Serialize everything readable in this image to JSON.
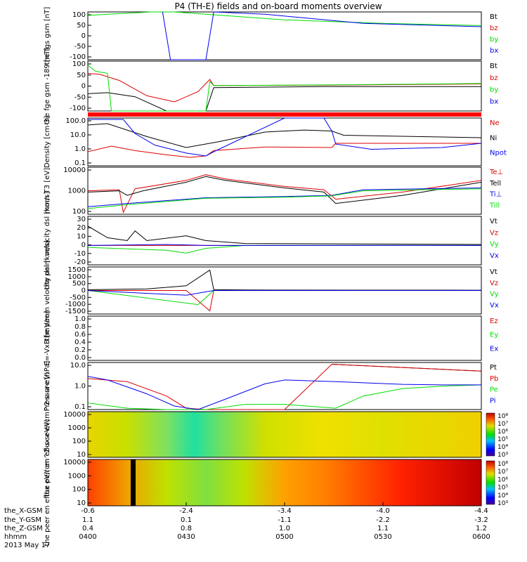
{
  "title": "P4 (TH-E) fields and on-board moments overview",
  "x_axis": {
    "row_labels": [
      "the_X-GSM",
      "the_Y-GSM",
      "the_Z-GSM",
      "hhmm",
      "2013 May 17"
    ],
    "ticks": [
      {
        "hhmm": "0400",
        "x": "-0.6",
        "y": "1.1",
        "z": "0.4"
      },
      {
        "hhmm": "0430",
        "x": "-2.4",
        "y": "0.1",
        "z": "0.8"
      },
      {
        "hhmm": "0500",
        "x": "-3.4",
        "y": "-1.1",
        "z": "1.0"
      },
      {
        "hhmm": "0530",
        "x": "-4.0",
        "y": "-2.2",
        "z": "1.1"
      },
      {
        "hhmm": "0600",
        "x": "-4.4",
        "y": "-3.2",
        "z": "1.2"
      }
    ]
  },
  "colors": {
    "black": "#000000",
    "red": "#dd0000",
    "green": "#00dd00",
    "blue": "#0000ee"
  },
  "chart_data": [
    {
      "type": "line",
      "ylabel": "the fgs gsm [nT]",
      "ylim": [
        -100,
        110
      ],
      "ticks": [
        "100",
        "50",
        "0",
        "-50",
        "-100"
      ],
      "series": [
        {
          "name": "Bt",
          "color": "#000000",
          "values": []
        },
        {
          "name": "bz",
          "color": "#dd0000",
          "values": []
        },
        {
          "name": "by",
          "color": "#00dd00",
          "x": [
            0,
            0.16,
            0.22,
            0.3,
            0.5,
            0.75,
            1.0
          ],
          "values": [
            95,
            130,
            150,
            100,
            75,
            60,
            50
          ]
        },
        {
          "name": "bx",
          "color": "#0000ee",
          "x": [
            0.19,
            0.21,
            0.3,
            0.32,
            0.45,
            0.7,
            1.0
          ],
          "values": [
            200,
            -100,
            -100,
            200,
            100,
            60,
            45
          ]
        }
      ]
    },
    {
      "type": "line",
      "ylabel": "the fge gsm -189 [nT]",
      "ylim": [
        -125,
        120
      ],
      "ticks": [
        "100",
        "50",
        "0",
        "-50",
        "-100"
      ],
      "series": [
        {
          "name": "Bt",
          "color": "#000000",
          "x": [
            0,
            0.05,
            0.12,
            0.2,
            0.3,
            0.32,
            0.6,
            1.0
          ],
          "values": [
            -40,
            -35,
            -55,
            -130,
            -130,
            -10,
            -5,
            -5
          ]
        },
        {
          "name": "bz",
          "color": "#dd0000",
          "x": [
            0,
            0.03,
            0.08,
            0.15,
            0.22,
            0.28,
            0.31,
            0.32,
            0.6,
            1.0
          ],
          "values": [
            60,
            55,
            25,
            -50,
            -80,
            -30,
            30,
            0,
            2,
            8
          ]
        },
        {
          "name": "by",
          "color": "#00dd00",
          "x": [
            0,
            0.02,
            0.05,
            0.06,
            0.3,
            0.31,
            0.32,
            0.6,
            1.0
          ],
          "values": [
            100,
            70,
            60,
            -130,
            -130,
            20,
            0,
            3,
            10
          ]
        },
        {
          "name": "bx",
          "color": "#0000ee",
          "values": []
        }
      ]
    },
    {
      "type": "line",
      "ylabel": "Density [cm-3]",
      "ylim_log10": [
        -1,
        2.4
      ],
      "ticks": [
        "100.0",
        "10.0",
        "1.0",
        "0.1"
      ],
      "series": [
        {
          "name": "Ne",
          "color": "#dd0000",
          "x": [
            0,
            0.06,
            0.12,
            0.2,
            0.26,
            0.3,
            0.32,
            0.45,
            0.62,
            0.63,
            0.8,
            1.0
          ],
          "values": [
            1.0,
            2.5,
            1.2,
            0.6,
            0.4,
            0.5,
            1.2,
            2.2,
            2.0,
            4.0,
            4.0,
            4.0
          ]
        },
        {
          "name": "Ni",
          "color": "#000000",
          "x": [
            0,
            0.05,
            0.15,
            0.25,
            0.33,
            0.45,
            0.55,
            0.62,
            0.65,
            1.0
          ],
          "values": [
            80,
            100,
            12,
            2,
            5,
            25,
            35,
            30,
            15,
            10
          ]
        },
        {
          "name": "Npot",
          "color": "#0000ee",
          "x": [
            0,
            0.09,
            0.12,
            0.17,
            0.25,
            0.3,
            0.32,
            0.5,
            0.6,
            0.62,
            0.63,
            0.72,
            0.9,
            1.0
          ],
          "values": [
            200,
            200,
            20,
            3,
            0.8,
            0.5,
            1,
            400,
            300,
            30,
            3.5,
            1.5,
            2,
            4
          ]
        }
      ]
    },
    {
      "type": "line",
      "ylabel": "mom T3 [eV]",
      "ylim_log10": [
        1.6,
        4.1
      ],
      "ticks": [
        "10000",
        "1000",
        "100"
      ],
      "series": [
        {
          "name": "Te⊥",
          "color": "#dd0000",
          "x": [
            0,
            0.08,
            0.09,
            0.12,
            0.25,
            0.3,
            0.35,
            0.5,
            0.6,
            0.63,
            0.8,
            1.0
          ],
          "values": [
            700,
            800,
            50,
            900,
            2500,
            5000,
            3000,
            1200,
            800,
            250,
            600,
            2500
          ]
        },
        {
          "name": "Tell",
          "color": "#000000",
          "x": [
            0,
            0.08,
            0.1,
            0.14,
            0.25,
            0.3,
            0.35,
            0.5,
            0.6,
            0.63,
            0.8,
            1.0
          ],
          "values": [
            600,
            700,
            400,
            700,
            2000,
            4000,
            2500,
            1000,
            600,
            150,
            400,
            2000
          ]
        },
        {
          "name": "Ti⊥",
          "color": "#0000ee",
          "x": [
            0,
            0.1,
            0.3,
            0.5,
            0.62,
            0.7,
            1.0
          ],
          "values": [
            100,
            150,
            300,
            350,
            400,
            800,
            1000
          ]
        },
        {
          "name": "Till",
          "color": "#00dd00",
          "x": [
            0,
            0.1,
            0.3,
            0.5,
            0.62,
            0.7,
            1.0
          ],
          "values": [
            80,
            130,
            280,
            320,
            380,
            700,
            900
          ]
        }
      ]
    },
    {
      "type": "line",
      "ylabel": "the peim velocity dsl [km/s]",
      "ylim": [
        -20,
        30
      ],
      "ticks": [
        "30",
        "20",
        "10",
        "0",
        "-10",
        "-20"
      ],
      "series": [
        {
          "name": "Vt",
          "color": "#000000",
          "x": [
            0,
            0.05,
            0.1,
            0.12,
            0.15,
            0.25,
            0.3,
            0.4,
            1.0
          ],
          "values": [
            20,
            8,
            5,
            15,
            5,
            10,
            5,
            2,
            1
          ]
        },
        {
          "name": "Vz",
          "color": "#dd0000",
          "x": [
            0,
            0.2,
            0.3,
            0.4,
            1.0
          ],
          "values": [
            0,
            0,
            0,
            0,
            0
          ]
        },
        {
          "name": "Vy",
          "color": "#00dd00",
          "x": [
            0,
            0.2,
            0.25,
            0.3,
            0.4,
            1.0
          ],
          "values": [
            -2,
            -5,
            -8,
            -3,
            0,
            0
          ]
        },
        {
          "name": "Vx",
          "color": "#0000ee",
          "x": [
            0,
            0.2,
            0.3,
            0.4,
            1.0
          ],
          "values": [
            0,
            1,
            0,
            0,
            0
          ]
        }
      ]
    },
    {
      "type": "line",
      "ylabel": "the peem velocity dsl [km/s]",
      "ylim": [
        -1500,
        1500
      ],
      "ticks": [
        "1500",
        "1000",
        "500",
        "0",
        "-500",
        "-1000",
        "-1500"
      ],
      "series": [
        {
          "name": "Vt",
          "color": "#000000",
          "x": [
            0,
            0.15,
            0.25,
            0.31,
            0.32,
            0.4,
            1.0
          ],
          "values": [
            50,
            100,
            300,
            1300,
            50,
            30,
            20
          ]
        },
        {
          "name": "Vz",
          "color": "#dd0000",
          "x": [
            0,
            0.25,
            0.31,
            0.32,
            0.4,
            1.0
          ],
          "values": [
            0,
            0,
            -1300,
            0,
            0,
            0
          ]
        },
        {
          "name": "Vy",
          "color": "#00dd00",
          "x": [
            0,
            0.25,
            0.28,
            0.32,
            0.4,
            1.0
          ],
          "values": [
            0,
            -800,
            -900,
            0,
            0,
            0
          ]
        },
        {
          "name": "Vx",
          "color": "#0000ee",
          "x": [
            0,
            0.25,
            0.32,
            0.4,
            1.0
          ],
          "values": [
            0,
            -300,
            0,
            0,
            0
          ]
        }
      ]
    },
    {
      "type": "line",
      "ylabel": "E=-VxB [mV/m]",
      "ylim": [
        0,
        1
      ],
      "ticks": [
        "1.0",
        "0.8",
        "0.6",
        "0.4",
        "0.2",
        "0.0"
      ],
      "series": [
        {
          "name": "Ez",
          "color": "#dd0000",
          "values": []
        },
        {
          "name": "Ey",
          "color": "#00dd00",
          "values": []
        },
        {
          "name": "Ex",
          "color": "#0000ee",
          "values": []
        }
      ]
    },
    {
      "type": "line",
      "ylabel": "Pressure [nPa]",
      "ylim_log10": [
        -1.3,
        1.4
      ],
      "ticks": [
        "10.0",
        "1.0",
        "0.1"
      ],
      "series": [
        {
          "name": "Pt",
          "color": "#000000",
          "x": [
            0.62,
            1.0
          ],
          "values": [
            20,
            8
          ]
        },
        {
          "name": "Pb",
          "color": "#dd0000",
          "x": [
            0,
            0.1,
            0.2,
            0.25,
            0.3,
            0.4,
            0.5,
            0.62,
            1.0
          ],
          "values": [
            3,
            2,
            0.3,
            0.06,
            0.04,
            0.05,
            0.04,
            20,
            8
          ]
        },
        {
          "name": "Pe",
          "color": "#00dd00",
          "x": [
            0,
            0.1,
            0.2,
            0.3,
            0.4,
            0.5,
            0.63,
            0.7,
            0.8,
            0.9,
            1.0
          ],
          "values": [
            0.12,
            0.06,
            0.05,
            0.05,
            0.1,
            0.1,
            0.06,
            0.3,
            0.8,
            1.1,
            1.3
          ]
        },
        {
          "name": "Pi",
          "color": "#0000ee",
          "x": [
            0,
            0.05,
            0.15,
            0.22,
            0.28,
            0.35,
            0.45,
            0.5,
            0.63,
            0.8,
            0.9,
            1.0
          ],
          "values": [
            4,
            2.5,
            0.4,
            0.08,
            0.05,
            0.2,
            1.5,
            2.5,
            2,
            1.4,
            1.3,
            1.3
          ]
        }
      ]
    },
    {
      "type": "heatmap",
      "ylabel": "the peir en eflux eV/(cm^2-s-sr-eV)",
      "ylim_log10": [
        1,
        4.2
      ],
      "ticks": [
        "10000",
        "1000",
        "100",
        "10"
      ],
      "colorbar_ticks": [
        "10⁸",
        "10⁷",
        "10⁶",
        "10⁵",
        "10⁴",
        "10³"
      ],
      "zlim_log10": [
        3,
        8
      ]
    },
    {
      "type": "heatmap",
      "ylabel": "the peer en eflux eV/(cm^2-s-sr-eV)",
      "ylim_log10": [
        1,
        4.2
      ],
      "ticks": [
        "10000",
        "1000",
        "100",
        "10"
      ],
      "colorbar_ticks": [
        "10⁸",
        "10⁷",
        "10⁶",
        "10⁵",
        "10⁴",
        "10³"
      ],
      "zlim_log10": [
        3,
        8
      ]
    }
  ]
}
